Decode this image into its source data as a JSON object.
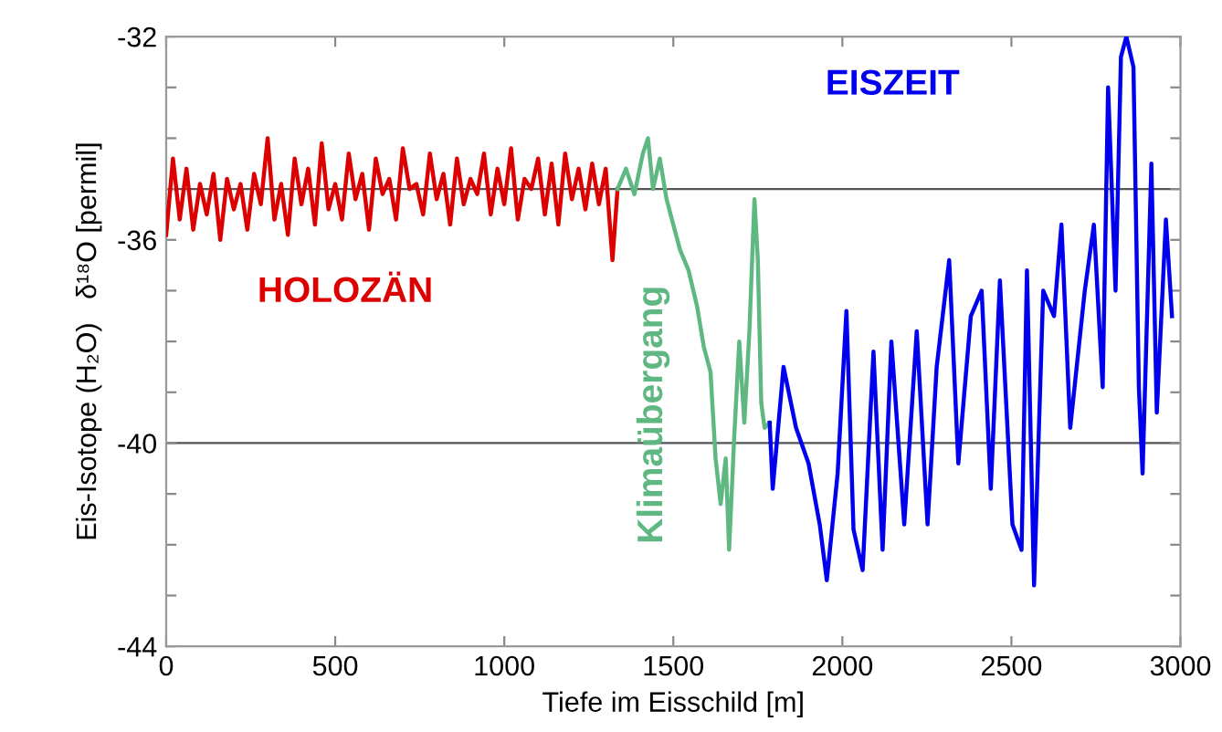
{
  "chart_data": {
    "type": "line",
    "xlabel": "Tiefe im Eisschild [m]",
    "ylabel": "Eis-Isotope (H₂O)   δ¹⁸O [permil]",
    "xlim": [
      0,
      3000
    ],
    "xticks": [
      0,
      500,
      1000,
      1500,
      2000,
      2500,
      3000
    ],
    "ylim": [
      -44,
      -32
    ],
    "yticks": [
      -44,
      {
        "value": -43,
        "label": null
      },
      {
        "value": -42,
        "label": null
      },
      {
        "value": -41,
        "label": null
      },
      -40,
      {
        "value": -39,
        "label": null
      },
      {
        "value": -38,
        "label": null
      },
      {
        "value": -37,
        "label": null
      },
      -36,
      {
        "value": -35,
        "label": null
      },
      {
        "value": -34,
        "label": null
      },
      {
        "value": -33,
        "label": null
      },
      -32
    ],
    "grid": false,
    "legend": false,
    "marker": "none",
    "line_style": "solid",
    "ref_lines": [
      {
        "axis": "y",
        "value": -35,
        "color": "#555555"
      },
      {
        "axis": "y",
        "value": -40,
        "color": "#555555"
      }
    ],
    "series": [
      {
        "name": "HOLOZÄN",
        "color": "#dd0000",
        "x": [
          0,
          20,
          40,
          60,
          80,
          100,
          120,
          140,
          160,
          180,
          200,
          220,
          240,
          260,
          280,
          300,
          320,
          340,
          360,
          380,
          400,
          420,
          440,
          460,
          480,
          500,
          520,
          540,
          560,
          580,
          600,
          620,
          640,
          660,
          680,
          700,
          720,
          740,
          760,
          780,
          800,
          820,
          840,
          860,
          880,
          900,
          920,
          940,
          960,
          980,
          1000,
          1020,
          1040,
          1060,
          1080,
          1100,
          1120,
          1140,
          1160,
          1180,
          1200,
          1220,
          1240,
          1260,
          1280,
          1300,
          1320,
          1335
        ],
        "values": [
          -35.9,
          -34.4,
          -35.6,
          -34.6,
          -35.8,
          -34.9,
          -35.5,
          -34.7,
          -36.0,
          -34.8,
          -35.4,
          -34.9,
          -35.8,
          -34.7,
          -35.3,
          -34.0,
          -35.6,
          -34.9,
          -35.9,
          -34.4,
          -35.3,
          -34.6,
          -35.7,
          -34.1,
          -35.4,
          -34.9,
          -35.6,
          -34.3,
          -35.2,
          -34.7,
          -35.8,
          -34.4,
          -35.1,
          -34.8,
          -35.6,
          -34.2,
          -35.0,
          -34.9,
          -35.5,
          -34.3,
          -35.2,
          -34.7,
          -35.7,
          -34.4,
          -35.3,
          -34.8,
          -35.1,
          -34.3,
          -35.5,
          -34.6,
          -35.3,
          -34.2,
          -35.6,
          -34.8,
          -35.0,
          -34.4,
          -35.5,
          -34.5,
          -35.7,
          -34.3,
          -35.2,
          -34.6,
          -35.4,
          -34.5,
          -35.3,
          -34.6,
          -36.4,
          -35.0
        ]
      },
      {
        "name": "Klimaübergang",
        "color": "#5fb882",
        "x": [
          1335,
          1360,
          1385,
          1410,
          1425,
          1440,
          1460,
          1480,
          1500,
          1520,
          1545,
          1570,
          1590,
          1610,
          1625,
          1640,
          1655,
          1665,
          1680,
          1695,
          1710,
          1725,
          1740,
          1750,
          1760,
          1770,
          1785
        ],
        "values": [
          -35.0,
          -34.6,
          -35.1,
          -34.3,
          -34.0,
          -35.0,
          -34.4,
          -35.2,
          -35.7,
          -36.2,
          -36.6,
          -37.3,
          -38.1,
          -38.6,
          -40.3,
          -41.2,
          -40.3,
          -42.1,
          -39.9,
          -38.0,
          -39.6,
          -37.8,
          -35.2,
          -36.4,
          -39.2,
          -39.7,
          -39.6
        ]
      },
      {
        "name": "EISZEIT",
        "color": "#0000ee",
        "x": [
          1785,
          1794,
          1826,
          1863,
          1900,
          1933,
          1954,
          1986,
          2012,
          2033,
          2060,
          2092,
          2119,
          2145,
          2183,
          2220,
          2252,
          2279,
          2316,
          2343,
          2380,
          2412,
          2439,
          2466,
          2503,
          2530,
          2546,
          2567,
          2594,
          2626,
          2648,
          2674,
          2717,
          2744,
          2770,
          2786,
          2808,
          2824,
          2840,
          2861,
          2877,
          2888,
          2914,
          2930,
          2957,
          2975
        ],
        "values": [
          -39.6,
          -40.9,
          -38.5,
          -39.7,
          -40.4,
          -41.6,
          -42.7,
          -40.6,
          -37.4,
          -41.7,
          -42.5,
          -38.2,
          -42.1,
          -38.0,
          -41.6,
          -37.8,
          -41.6,
          -38.5,
          -36.4,
          -40.4,
          -37.5,
          -37.0,
          -40.9,
          -36.8,
          -41.6,
          -42.1,
          -36.6,
          -42.8,
          -37.0,
          -37.5,
          -35.7,
          -39.7,
          -37.0,
          -35.7,
          -38.9,
          -33.0,
          -37.0,
          -32.4,
          -32.0,
          -32.6,
          -38.9,
          -40.6,
          -34.5,
          -39.4,
          -35.6,
          -37.5
        ]
      }
    ]
  }
}
